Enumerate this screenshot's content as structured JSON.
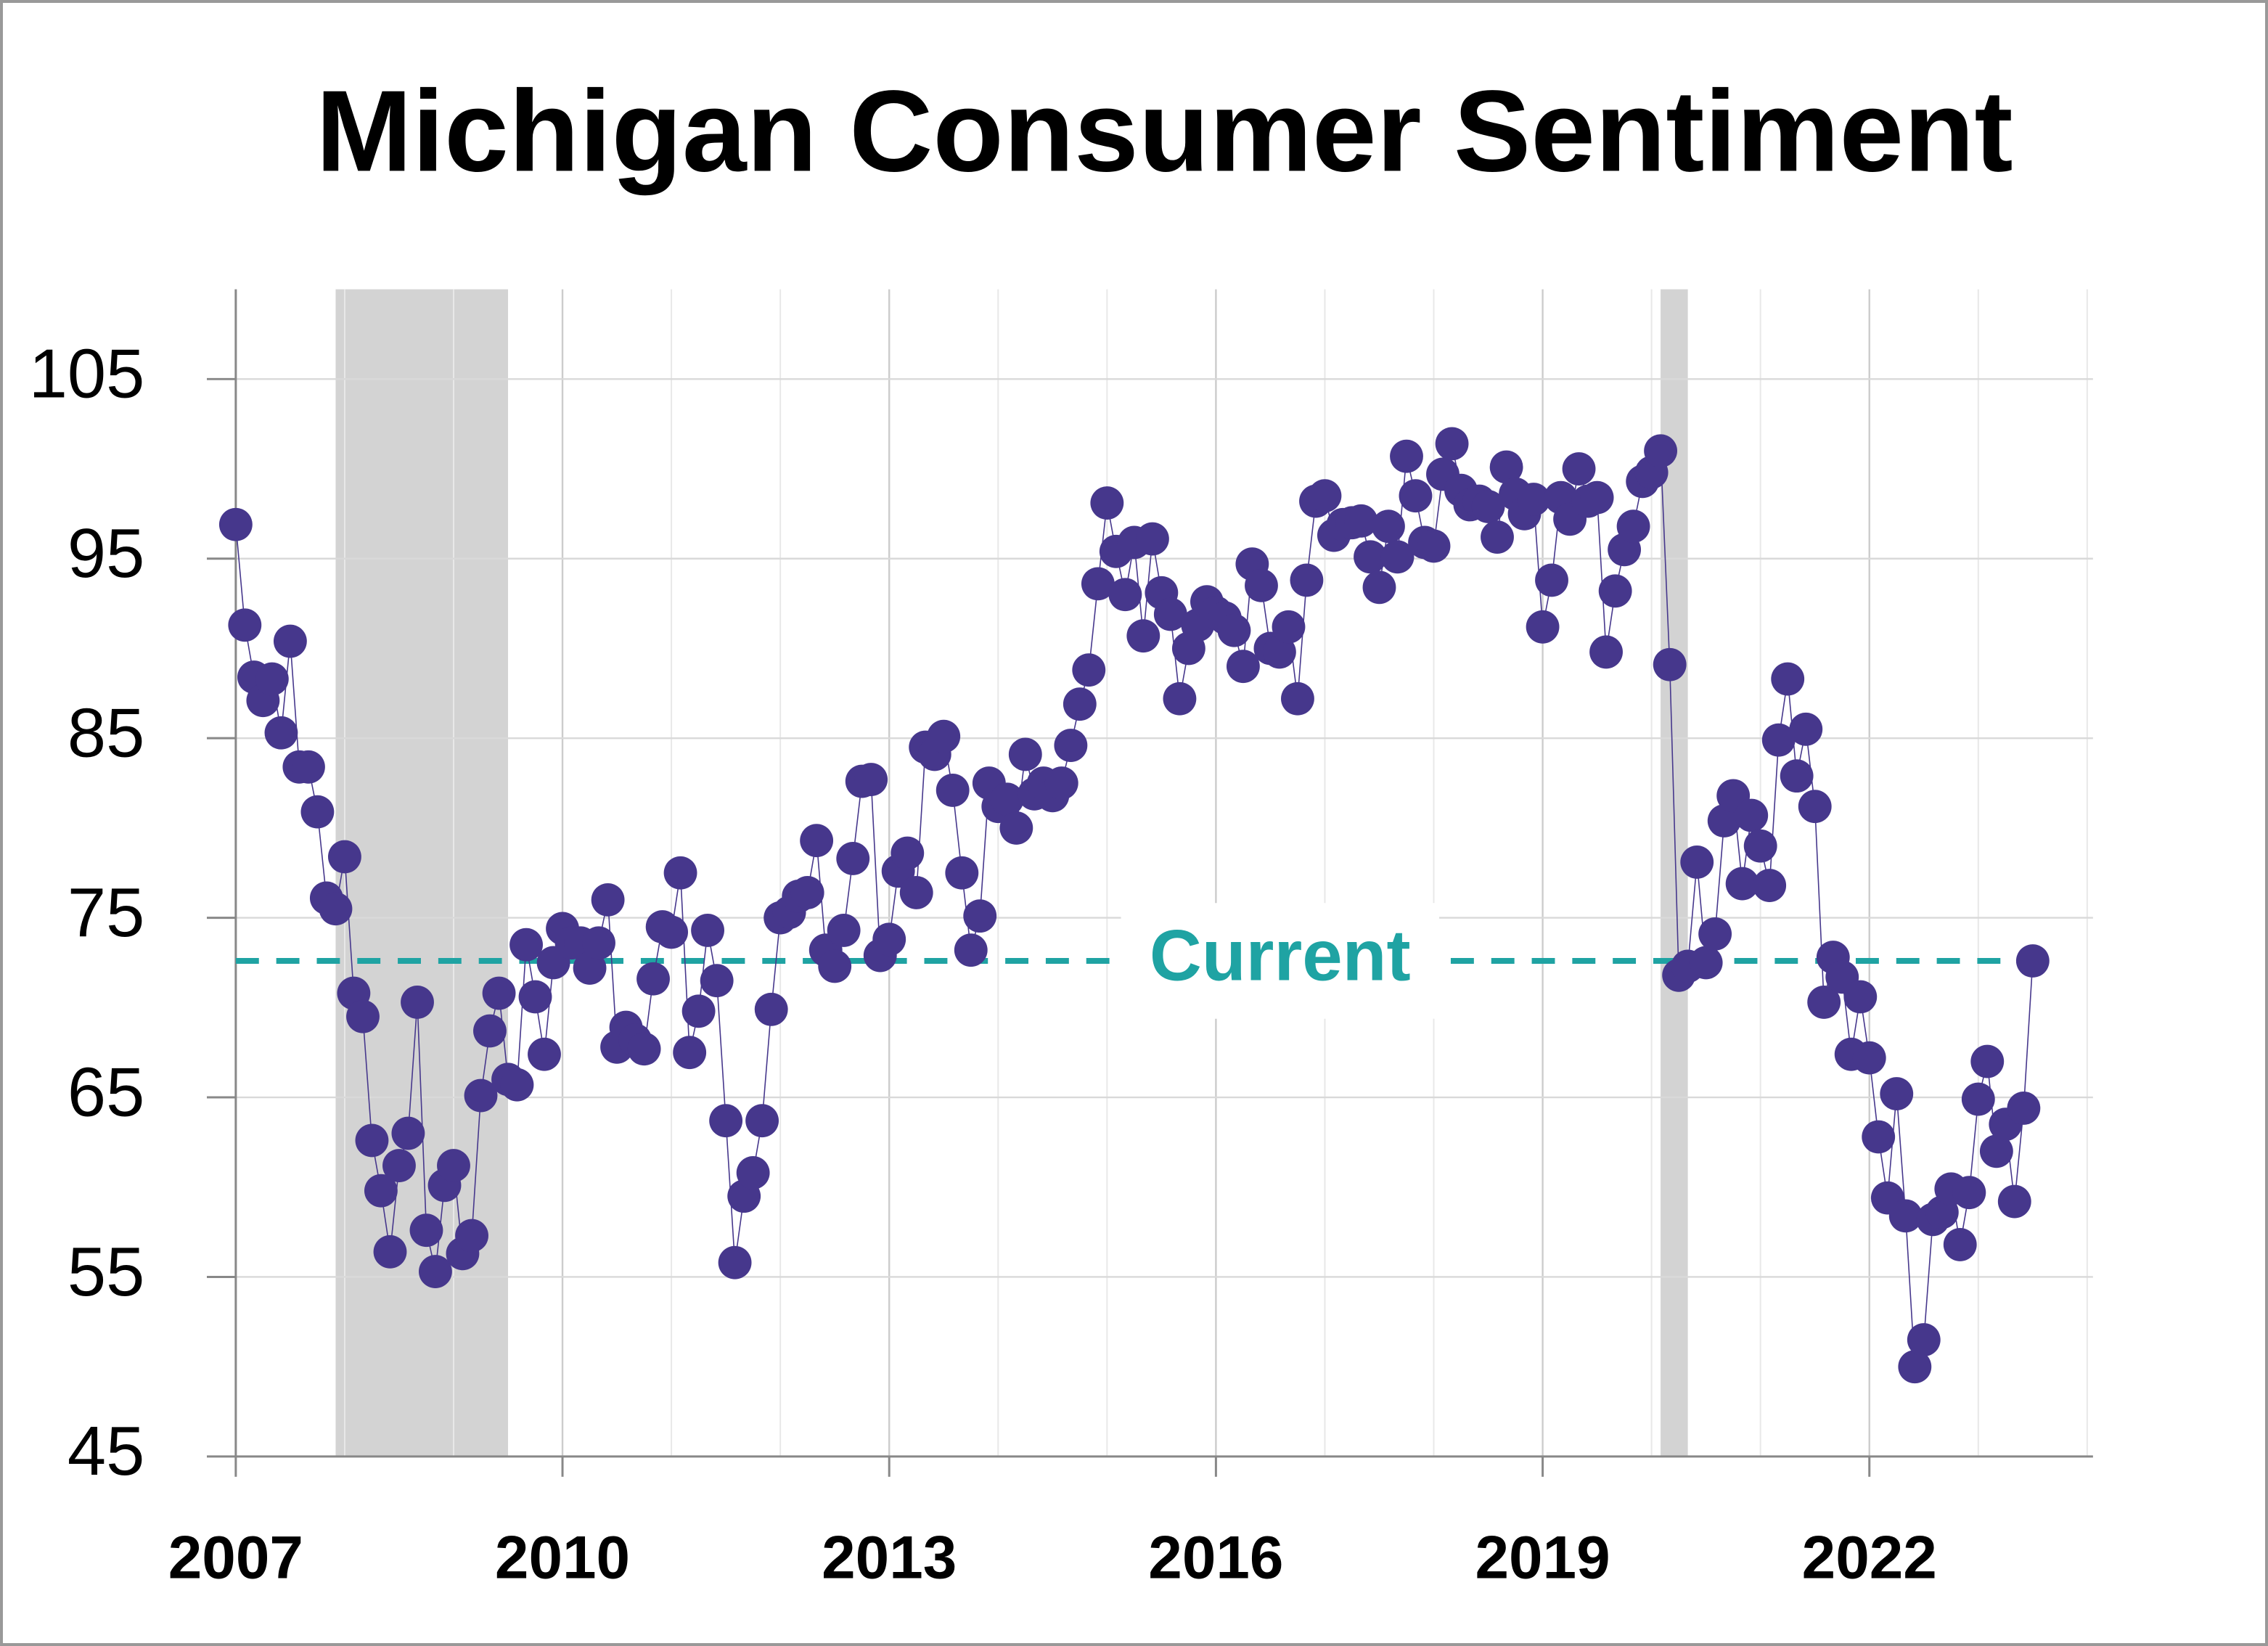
{
  "chart_data": {
    "type": "scatter-line",
    "title": "Michigan Consumer Sentiment",
    "color": "#46378c",
    "x": [
      2007,
      2007.083,
      2007.167,
      2007.25,
      2007.333,
      2007.417,
      2007.5,
      2007.583,
      2007.667,
      2007.75,
      2007.833,
      2007.917,
      2008,
      2008.083,
      2008.167,
      2008.25,
      2008.333,
      2008.417,
      2008.5,
      2008.583,
      2008.667,
      2008.75,
      2008.833,
      2008.917,
      2009,
      2009.083,
      2009.167,
      2009.25,
      2009.333,
      2009.417,
      2009.5,
      2009.583,
      2009.667,
      2009.75,
      2009.833,
      2009.917,
      2010,
      2010.083,
      2010.167,
      2010.25,
      2010.333,
      2010.417,
      2010.5,
      2010.583,
      2010.667,
      2010.75,
      2010.833,
      2010.917,
      2011,
      2011.083,
      2011.167,
      2011.25,
      2011.333,
      2011.417,
      2011.5,
      2011.583,
      2011.667,
      2011.75,
      2011.833,
      2011.917,
      2012,
      2012.083,
      2012.167,
      2012.25,
      2012.333,
      2012.417,
      2012.5,
      2012.583,
      2012.667,
      2012.75,
      2012.833,
      2012.917,
      2013,
      2013.083,
      2013.167,
      2013.25,
      2013.333,
      2013.417,
      2013.5,
      2013.583,
      2013.667,
      2013.75,
      2013.833,
      2013.917,
      2014,
      2014.083,
      2014.167,
      2014.25,
      2014.333,
      2014.417,
      2014.5,
      2014.583,
      2014.667,
      2014.75,
      2014.833,
      2014.917,
      2015,
      2015.083,
      2015.167,
      2015.25,
      2015.333,
      2015.417,
      2015.5,
      2015.583,
      2015.667,
      2015.75,
      2015.833,
      2015.917,
      2016,
      2016.083,
      2016.167,
      2016.25,
      2016.333,
      2016.417,
      2016.5,
      2016.583,
      2016.667,
      2016.75,
      2016.833,
      2016.917,
      2017,
      2017.083,
      2017.167,
      2017.25,
      2017.333,
      2017.417,
      2017.5,
      2017.583,
      2017.667,
      2017.75,
      2017.833,
      2017.917,
      2018,
      2018.083,
      2018.167,
      2018.25,
      2018.333,
      2018.417,
      2018.5,
      2018.583,
      2018.667,
      2018.75,
      2018.833,
      2018.917,
      2019,
      2019.083,
      2019.167,
      2019.25,
      2019.333,
      2019.417,
      2019.5,
      2019.583,
      2019.667,
      2019.75,
      2019.833,
      2019.917,
      2020,
      2020.083,
      2020.167,
      2020.25,
      2020.333,
      2020.417,
      2020.5,
      2020.583,
      2020.667,
      2020.75,
      2020.833,
      2020.917,
      2021,
      2021.083,
      2021.167,
      2021.25,
      2021.333,
      2021.417,
      2021.5,
      2021.583,
      2021.667,
      2021.75,
      2021.833,
      2021.917,
      2022,
      2022.083,
      2022.167,
      2022.25,
      2022.333,
      2022.417,
      2022.5,
      2022.583,
      2022.667,
      2022.75,
      2022.833,
      2022.917,
      2023,
      2023.083,
      2023.167,
      2023.25,
      2023.333,
      2023.417,
      2023.5
    ],
    "values": [
      96.9,
      91.3,
      88.4,
      87.1,
      88.3,
      85.3,
      90.4,
      83.4,
      83.4,
      80.9,
      76.1,
      75.5,
      78.4,
      70.8,
      69.5,
      62.6,
      59.8,
      56.4,
      61.2,
      63.0,
      70.3,
      57.6,
      55.3,
      60.1,
      61.2,
      56.3,
      57.3,
      65.1,
      68.7,
      70.8,
      66.0,
      65.7,
      73.5,
      70.6,
      67.4,
      72.5,
      74.4,
      73.6,
      73.6,
      72.2,
      73.6,
      76.0,
      67.8,
      68.9,
      68.2,
      67.7,
      71.6,
      74.5,
      74.2,
      77.5,
      67.5,
      69.8,
      74.3,
      71.5,
      63.7,
      55.8,
      59.5,
      60.8,
      63.7,
      69.9,
      75.0,
      75.3,
      76.2,
      76.4,
      79.3,
      73.2,
      72.3,
      74.3,
      78.3,
      82.6,
      82.7,
      72.9,
      73.8,
      77.6,
      78.6,
      76.4,
      84.5,
      84.1,
      85.1,
      82.1,
      77.5,
      73.2,
      75.1,
      82.5,
      81.2,
      81.6,
      80.0,
      84.1,
      81.9,
      82.5,
      81.8,
      82.5,
      84.6,
      86.9,
      88.8,
      93.6,
      98.1,
      95.4,
      93.0,
      95.9,
      90.7,
      96.1,
      93.1,
      91.9,
      87.2,
      90.0,
      91.3,
      92.6,
      92.0,
      91.7,
      91.0,
      89.0,
      94.7,
      93.5,
      90.0,
      89.8,
      91.2,
      87.2,
      93.8,
      98.2,
      98.5,
      96.3,
      96.9,
      97.0,
      97.1,
      95.1,
      93.4,
      96.8,
      95.1,
      100.7,
      98.5,
      95.9,
      95.7,
      99.7,
      101.4,
      98.8,
      98.0,
      98.2,
      97.9,
      96.2,
      100.1,
      98.6,
      97.5,
      98.3,
      91.2,
      93.8,
      98.4,
      97.2,
      100.0,
      98.2,
      98.4,
      89.8,
      93.2,
      95.5,
      96.8,
      99.3,
      99.8,
      101.0,
      89.1,
      71.8,
      72.3,
      78.1,
      72.5,
      74.1,
      80.4,
      81.8,
      76.9,
      80.7,
      79.0,
      76.8,
      84.9,
      88.3,
      82.9,
      85.5,
      81.2,
      70.3,
      72.8,
      71.7,
      67.4,
      70.6,
      67.2,
      62.8,
      59.4,
      65.2,
      58.4,
      50.0,
      51.5,
      58.2,
      58.6,
      59.9,
      56.8,
      59.7,
      64.9,
      67.0,
      62.0,
      63.5,
      59.2,
      64.4,
      72.6
    ],
    "reference_line": {
      "label": "Current",
      "value": 72.6,
      "color": "#1fa3a3"
    },
    "shaded_ranges": [
      [
        2007.917,
        2009.5
      ],
      [
        2020.083,
        2020.333
      ]
    ],
    "xlim": [
      2007,
      2024
    ],
    "xticks": [
      2007,
      2010,
      2013,
      2016,
      2019,
      2022
    ],
    "minor_xticks": [
      2008,
      2009,
      2011,
      2012,
      2014,
      2015,
      2017,
      2018,
      2020,
      2021,
      2023,
      2024
    ],
    "ylim": [
      45,
      110
    ],
    "yticks": [
      45,
      55,
      65,
      75,
      85,
      95,
      105
    ],
    "grid": true
  }
}
